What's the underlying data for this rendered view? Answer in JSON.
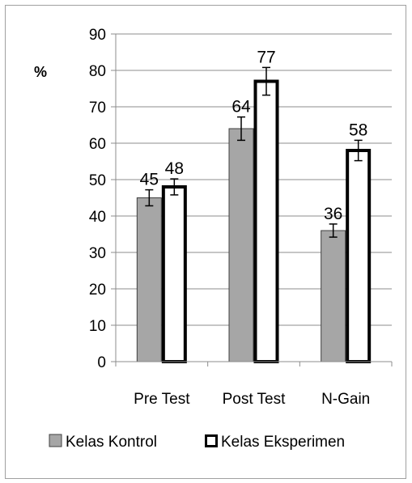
{
  "chart_data": {
    "type": "bar",
    "ylabel": "%",
    "categories": [
      "Pre Test",
      "Post Test",
      "N-Gain"
    ],
    "series": [
      {
        "name": "Kelas Kontrol",
        "values": [
          45,
          64,
          36
        ],
        "error": [
          2.2,
          3.2,
          1.8
        ],
        "fill": "#a6a6a6",
        "stroke": "#404040"
      },
      {
        "name": "Kelas Eksperimen",
        "values": [
          48,
          77,
          58
        ],
        "error": [
          2.2,
          3.8,
          2.8
        ],
        "fill": "#ffffff",
        "stroke": "#000000"
      }
    ],
    "ylim": [
      0,
      90
    ],
    "yticks": [
      0,
      10,
      20,
      30,
      40,
      50,
      60,
      70,
      80,
      90
    ],
    "grid": true,
    "legend": "bottom"
  }
}
